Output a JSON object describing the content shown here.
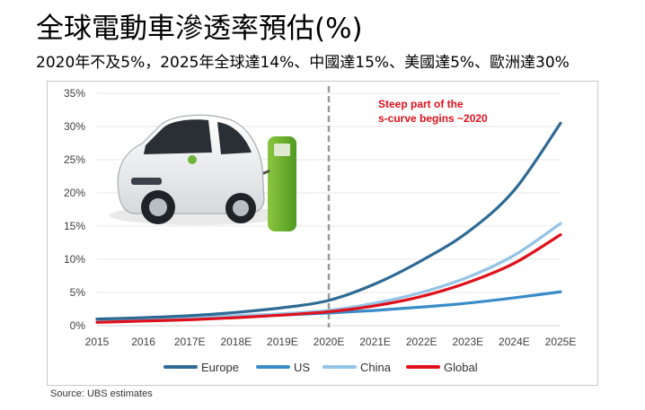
{
  "header": {
    "title": "全球電動車滲透率預估(%)",
    "subtitle": "2020年不及5%，2025年全球達14%、中國達15%、美國達5%、歐洲達30%"
  },
  "footer": {
    "source": "Source: UBS estimates"
  },
  "illustration": {
    "icon": "electric-car-charging-icon"
  },
  "chart_data": {
    "type": "line",
    "title": "",
    "xlabel": "",
    "ylabel": "",
    "categories": [
      "2015",
      "2016",
      "2017E",
      "2018E",
      "2019E",
      "2020E",
      "2021E",
      "2022E",
      "2023E",
      "2024E",
      "2025E"
    ],
    "ylim": [
      0,
      35
    ],
    "yticks": [
      "0%",
      "5%",
      "10%",
      "15%",
      "20%",
      "25%",
      "30%",
      "35%"
    ],
    "grid": true,
    "legend_position": "bottom",
    "annotation": {
      "lines": [
        "Steep part of the",
        "s-curve begins ~2020"
      ],
      "color": "#e0101a",
      "marker_category": "2020E"
    },
    "series": [
      {
        "name": "Europe",
        "color": "#2e6a94",
        "values": [
          1.0,
          1.2,
          1.5,
          2.0,
          2.7,
          3.8,
          6.3,
          9.8,
          14.1,
          20.4,
          30.5
        ]
      },
      {
        "name": "US",
        "color": "#3a8cc8",
        "values": [
          1.0,
          1.1,
          1.2,
          1.4,
          1.6,
          1.9,
          2.3,
          2.8,
          3.4,
          4.2,
          5.1
        ]
      },
      {
        "name": "China",
        "color": "#94c3e5",
        "values": [
          0.8,
          1.0,
          1.2,
          1.5,
          1.8,
          2.3,
          3.4,
          5.0,
          7.3,
          10.6,
          15.4
        ]
      },
      {
        "name": "Global",
        "color": "#e0101a",
        "values": [
          0.5,
          0.7,
          0.9,
          1.2,
          1.6,
          2.1,
          3.0,
          4.4,
          6.5,
          9.4,
          13.7
        ]
      }
    ]
  }
}
